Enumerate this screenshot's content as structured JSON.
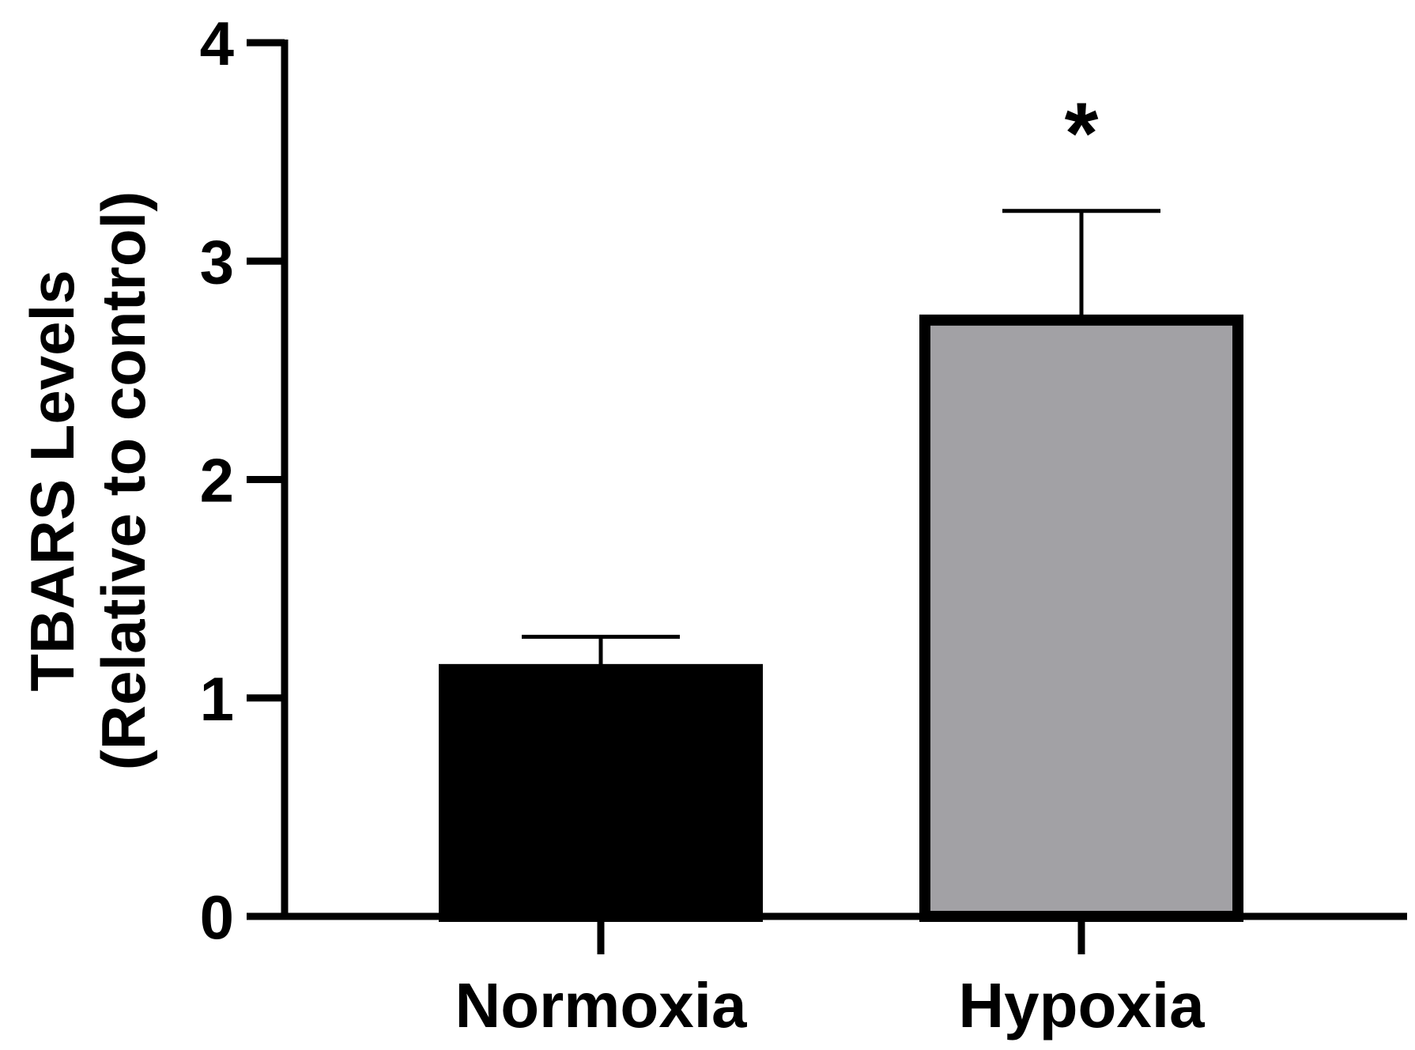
{
  "chart_data": {
    "type": "bar",
    "categories": [
      "Normoxia",
      "Hypoxia"
    ],
    "values": [
      1.13,
      2.73
    ],
    "error_upper": [
      1.28,
      3.23
    ],
    "bar_colors": [
      "#000000",
      "#a2a1a5"
    ],
    "annotations": [
      "",
      "*"
    ],
    "ylabel_lines": [
      "TBARS Levels",
      "(Relative to control)"
    ],
    "xlabel": "",
    "title": "",
    "ylim": [
      0,
      4
    ],
    "yticks": [
      0,
      1,
      2,
      3,
      4
    ],
    "grid": false,
    "legend": "none"
  }
}
